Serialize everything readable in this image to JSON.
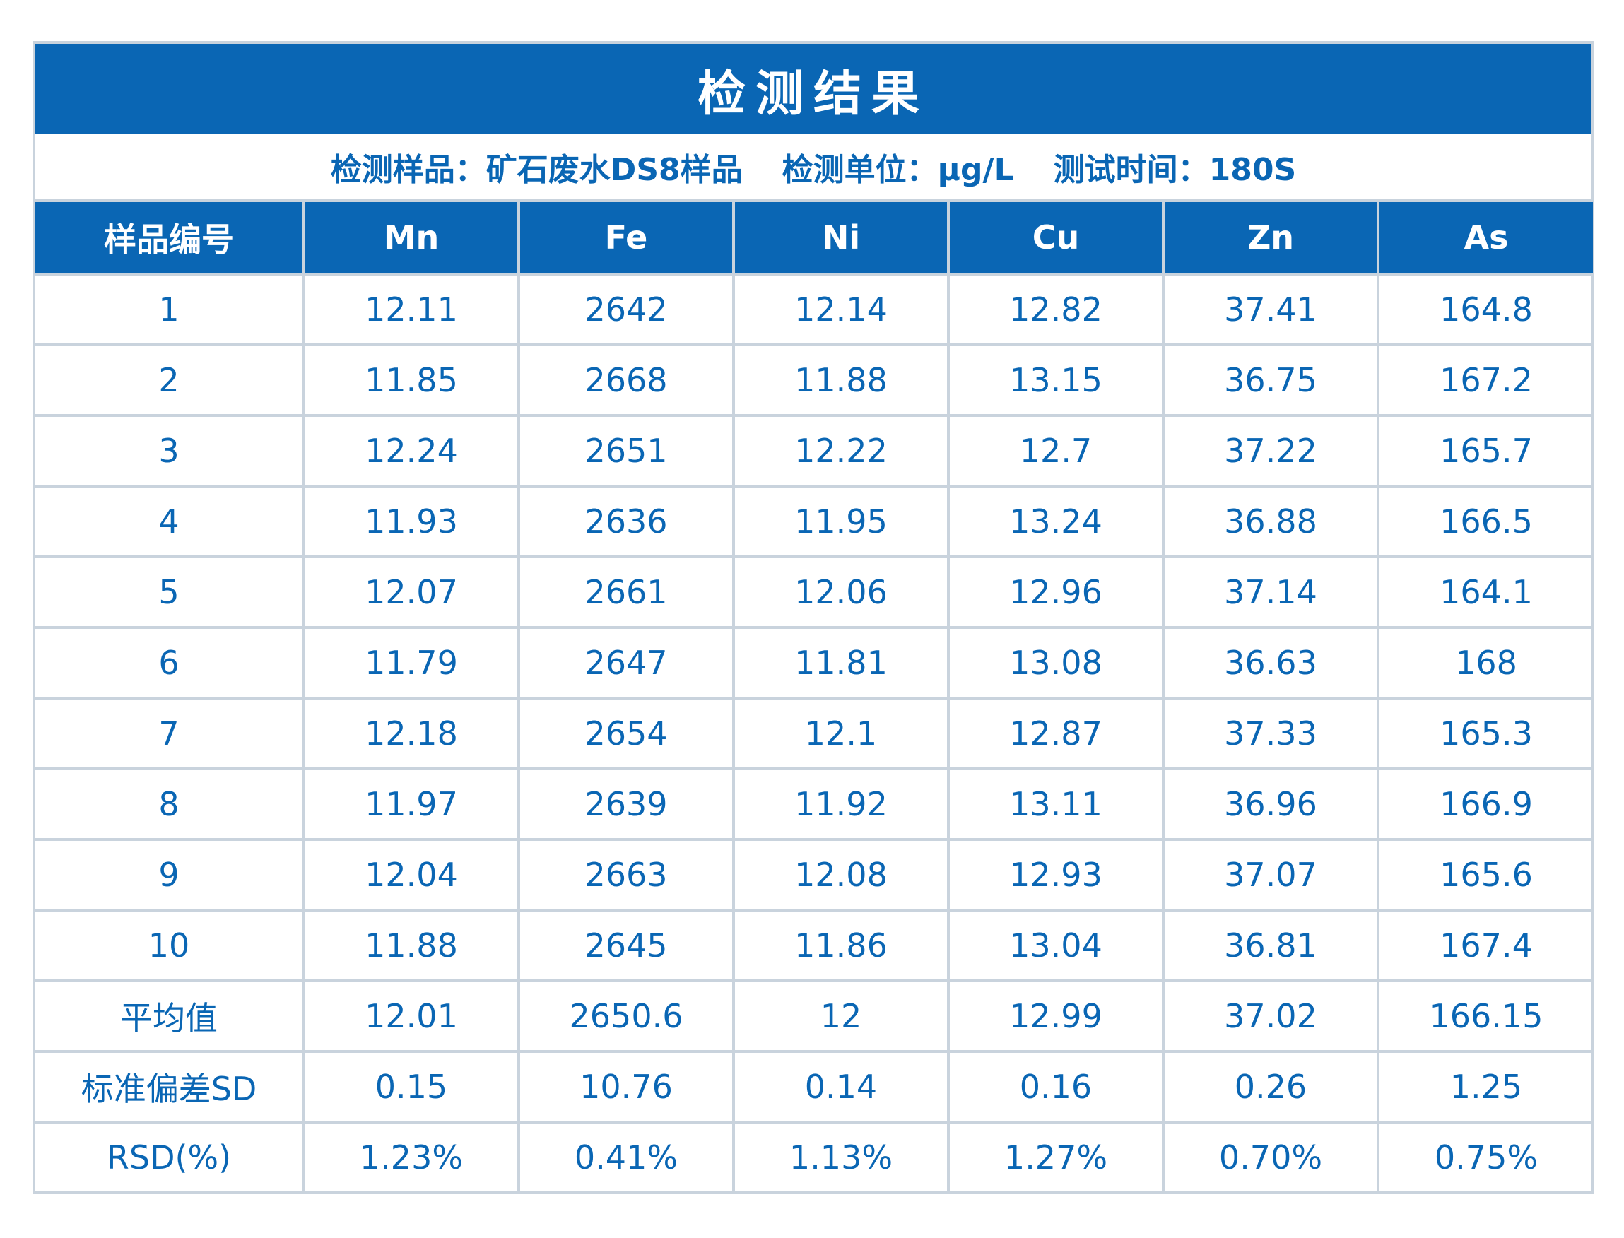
{
  "title": "检测结果",
  "info": {
    "sample": "检测样品：矿石废水DS8样品",
    "unit": "检测单位：μg/L",
    "time": "测试时间：180S"
  },
  "columns": [
    "样品编号",
    "Mn",
    "Fe",
    "Ni",
    "Cu",
    "Zn",
    "As"
  ],
  "rows": [
    [
      "1",
      "12.11",
      "2642",
      "12.14",
      "12.82",
      "37.41",
      "164.8"
    ],
    [
      "2",
      "11.85",
      "2668",
      "11.88",
      "13.15",
      "36.75",
      "167.2"
    ],
    [
      "3",
      "12.24",
      "2651",
      "12.22",
      "12.7",
      "37.22",
      "165.7"
    ],
    [
      "4",
      "11.93",
      "2636",
      "11.95",
      "13.24",
      "36.88",
      "166.5"
    ],
    [
      "5",
      "12.07",
      "2661",
      "12.06",
      "12.96",
      "37.14",
      "164.1"
    ],
    [
      "6",
      "11.79",
      "2647",
      "11.81",
      "13.08",
      "36.63",
      "168"
    ],
    [
      "7",
      "12.18",
      "2654",
      "12.1",
      "12.87",
      "37.33",
      "165.3"
    ],
    [
      "8",
      "11.97",
      "2639",
      "11.92",
      "13.11",
      "36.96",
      "166.9"
    ],
    [
      "9",
      "12.04",
      "2663",
      "12.08",
      "12.93",
      "37.07",
      "165.6"
    ],
    [
      "10",
      "11.88",
      "2645",
      "11.86",
      "13.04",
      "36.81",
      "167.4"
    ],
    [
      "平均值",
      "12.01",
      "2650.6",
      "12",
      "12.99",
      "37.02",
      "166.15"
    ],
    [
      "标准偏差SD",
      "0.15",
      "10.76",
      "0.14",
      "0.16",
      "0.26",
      "1.25"
    ],
    [
      "RSD(%)",
      "1.23%",
      "0.41%",
      "1.13%",
      "1.27%",
      "0.70%",
      "0.75%"
    ]
  ],
  "colors": {
    "header_bg": "#0a66b4",
    "text": "#0a66b4",
    "grid": "#c9d3dd"
  }
}
